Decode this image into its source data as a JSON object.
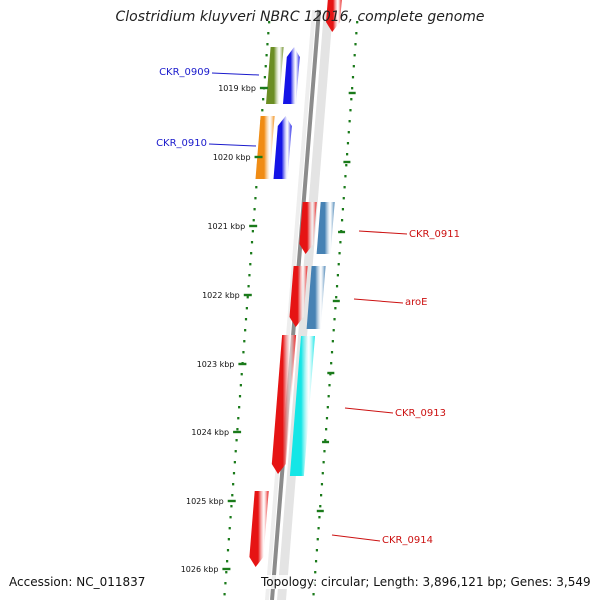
{
  "title": "Clostridium kluyveri NBRC 12016, complete genome",
  "footer": {
    "accession": "Accession: NC_011837",
    "topology": "Topology: circular; Length: 3,896,121 bp; Genes: 3,549"
  },
  "colors": {
    "backbone": "#8c8c8c",
    "tick": "#1a7a1a",
    "label_forward": "#1a1acc",
    "label_reverse": "#cc1111",
    "leader_forward": "#1a1acc",
    "leader_reverse": "#cc1111"
  },
  "ticks": [
    {
      "label": "1019 kbp"
    },
    {
      "label": "1020 kbp"
    },
    {
      "label": "1021 kbp"
    },
    {
      "label": "1022 kbp"
    },
    {
      "label": "1023 kbp"
    },
    {
      "label": "1024 kbp"
    },
    {
      "label": "1025 kbp"
    },
    {
      "label": "1026 kbp"
    }
  ],
  "gene_labels": [
    {
      "label": "CKR_0909",
      "strand": "forward"
    },
    {
      "label": "CKR_0910",
      "strand": "forward"
    },
    {
      "label": "CKR_0911",
      "strand": "reverse"
    },
    {
      "label": "aroE",
      "strand": "reverse"
    },
    {
      "label": "CKR_0913",
      "strand": "reverse"
    },
    {
      "label": "CKR_0914",
      "strand": "reverse"
    }
  ],
  "features": [
    {
      "name": "CKR_0909-cog",
      "color": "#6b8e23"
    },
    {
      "name": "CKR_0909-strand",
      "color": "#1414e6"
    },
    {
      "name": "CKR_0910-cog",
      "color": "#f08c14"
    },
    {
      "name": "CKR_0910-strand",
      "color": "#1414e6"
    },
    {
      "name": "CKR_0911-strand",
      "color": "#e61414"
    },
    {
      "name": "CKR_0911-cog",
      "color": "#4682b4"
    },
    {
      "name": "aroE-strand",
      "color": "#e61414"
    },
    {
      "name": "aroE-cog",
      "color": "#4682b4"
    },
    {
      "name": "CKR_0913-strand",
      "color": "#e61414"
    },
    {
      "name": "CKR_0913-cog",
      "color": "#14e6e6"
    },
    {
      "name": "CKR_0914-strand",
      "color": "#e61414"
    },
    {
      "name": "top-edge-strand",
      "color": "#e61414"
    }
  ]
}
